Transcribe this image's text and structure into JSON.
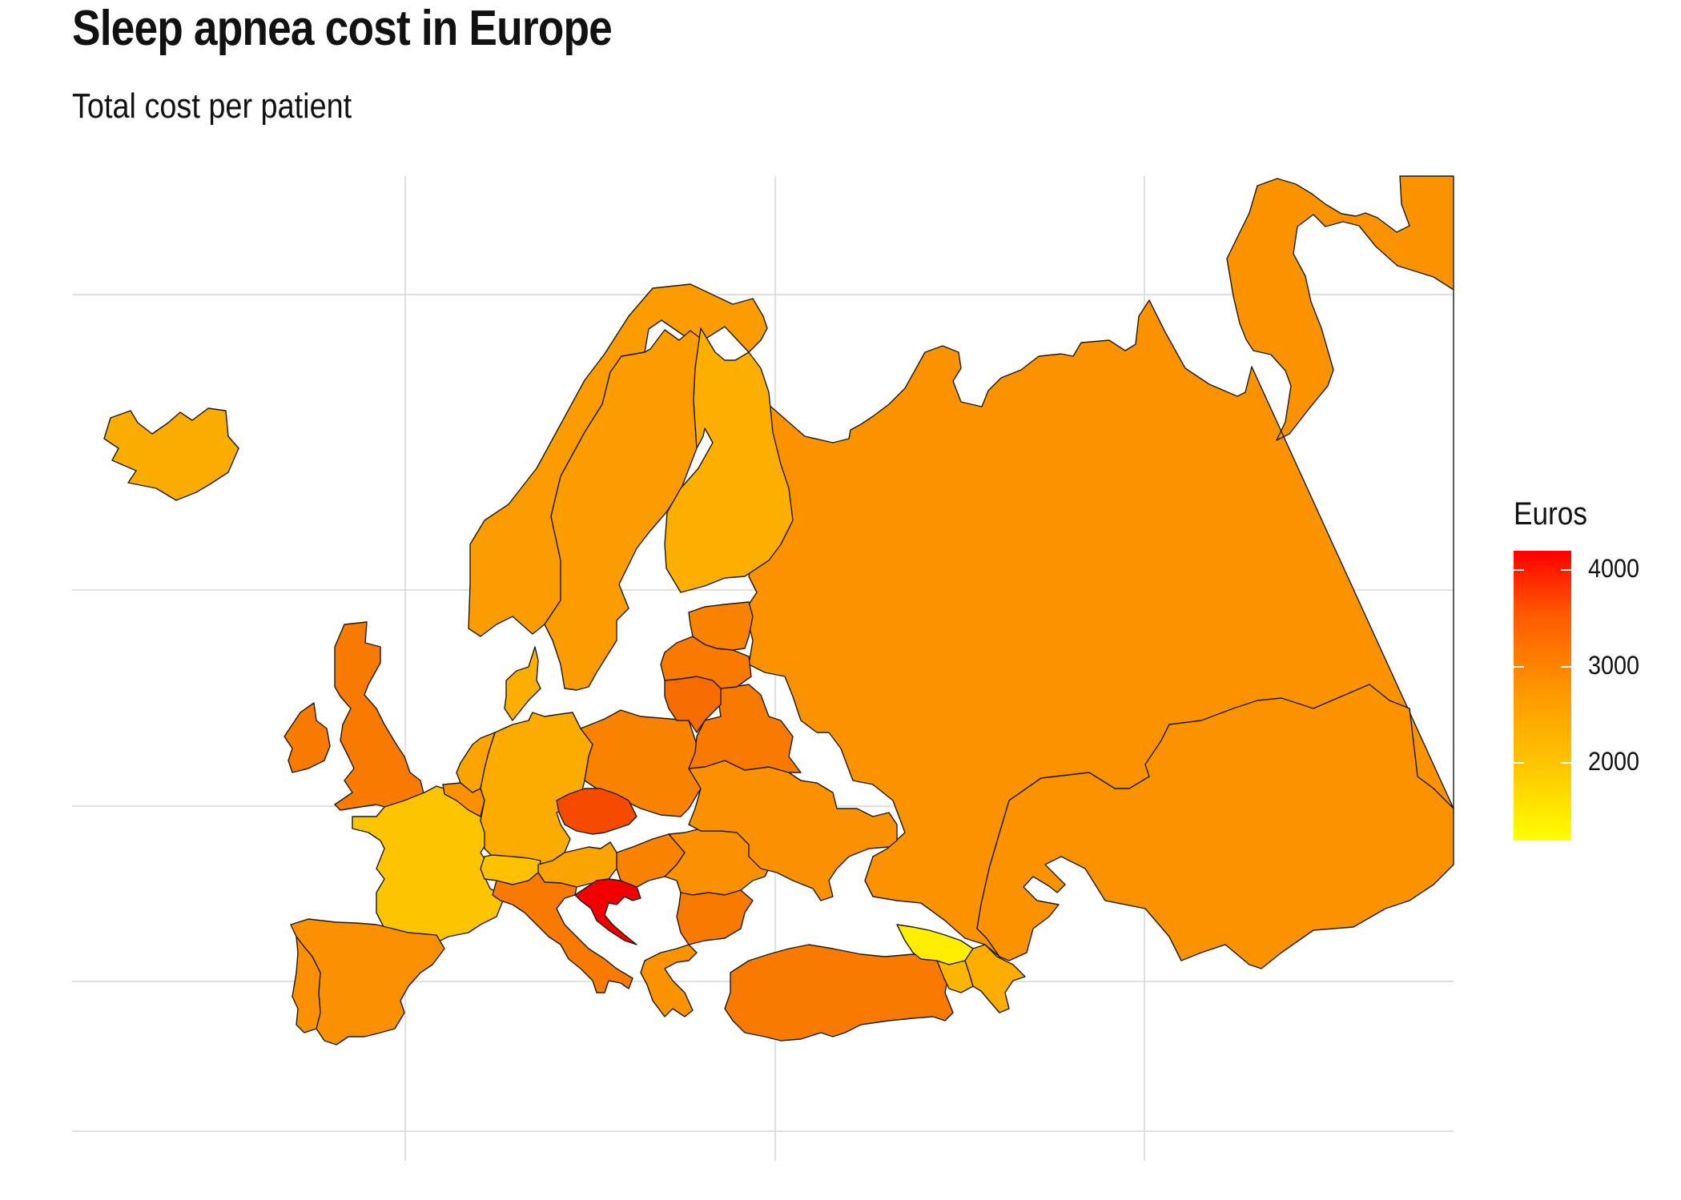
{
  "title": "Sleep apnea cost in Europe",
  "subtitle": "Total cost per patient",
  "legend": {
    "title": "Euros",
    "min": 1200,
    "max": 4200,
    "ticks": [
      4000,
      3000,
      2000
    ],
    "colors": {
      "low": "#ffff00",
      "mid": "#ff9a00",
      "high": "#ff0000"
    }
  },
  "map_data": {
    "type": "choropleth",
    "region": "Europe",
    "variable": "Total cost per patient (Euros)",
    "grid": true,
    "legend_position": "right",
    "regions": [
      {
        "name": "russia",
        "value": 2880,
        "color": "#fb9300"
      },
      {
        "name": "kazakhstan",
        "value": 2880,
        "color": "#fb9300"
      },
      {
        "name": "norway",
        "value": 2760,
        "color": "#fb9d00"
      },
      {
        "name": "sweden",
        "value": 2760,
        "color": "#fb9d00"
      },
      {
        "name": "finland",
        "value": 2450,
        "color": "#fcaf00"
      },
      {
        "name": "iceland",
        "value": 2450,
        "color": "#fbac00"
      },
      {
        "name": "united-kingdom",
        "value": 3250,
        "color": "#f87a00"
      },
      {
        "name": "ireland",
        "value": 3250,
        "color": "#f87a00"
      },
      {
        "name": "france",
        "value": 2150,
        "color": "#fdc500"
      },
      {
        "name": "spain",
        "value": 2950,
        "color": "#fb9000"
      },
      {
        "name": "portugal",
        "value": 2950,
        "color": "#fb9000"
      },
      {
        "name": "germany",
        "value": 2550,
        "color": "#fcac00"
      },
      {
        "name": "denmark",
        "value": 2450,
        "color": "#fcaf00"
      },
      {
        "name": "netherlands",
        "value": 2650,
        "color": "#fba400"
      },
      {
        "name": "belgium",
        "value": 2950,
        "color": "#fb9000"
      },
      {
        "name": "switzerland",
        "value": 2200,
        "color": "#fdc100"
      },
      {
        "name": "austria",
        "value": 2650,
        "color": "#fba400"
      },
      {
        "name": "italy",
        "value": 3250,
        "color": "#f87a00"
      },
      {
        "name": "poland",
        "value": 3150,
        "color": "#f98200"
      },
      {
        "name": "czech-republic",
        "value": 3650,
        "color": "#f64a00"
      },
      {
        "name": "croatia",
        "value": 4200,
        "color": "#f20000"
      },
      {
        "name": "hungary",
        "value": 3150,
        "color": "#f98200"
      },
      {
        "name": "romania",
        "value": 2950,
        "color": "#fb9000"
      },
      {
        "name": "bulgaria",
        "value": 3250,
        "color": "#f87a00"
      },
      {
        "name": "greece",
        "value": 2900,
        "color": "#fb9200"
      },
      {
        "name": "turkey",
        "value": 3250,
        "color": "#f87a00"
      },
      {
        "name": "ukraine",
        "value": 2950,
        "color": "#fb9000"
      },
      {
        "name": "belarus",
        "value": 3250,
        "color": "#f87a00"
      },
      {
        "name": "lithuania",
        "value": 3450,
        "color": "#f66c00"
      },
      {
        "name": "latvia",
        "value": 3250,
        "color": "#f87a00"
      },
      {
        "name": "estonia",
        "value": 3150,
        "color": "#f98200"
      },
      {
        "name": "georgia",
        "value": 1400,
        "color": "#ffee00"
      },
      {
        "name": "armenia",
        "value": 2400,
        "color": "#fcb500"
      },
      {
        "name": "azerbaijan",
        "value": 2500,
        "color": "#fcad00"
      }
    ]
  }
}
